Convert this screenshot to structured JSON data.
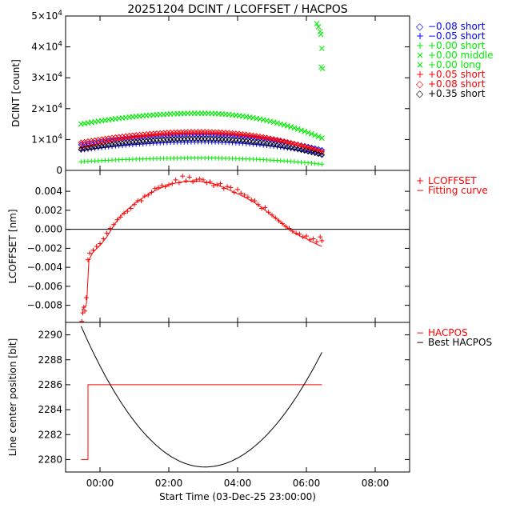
{
  "title": "20251204 DCINT / LCOFFSET / HACPOS",
  "xlabel": "Start Time (03-Dec-25 23:00:00)",
  "x_ticks": [
    "00:00",
    "02:00",
    "04:00",
    "06:00",
    "08:00"
  ],
  "x_tick_values": [
    1,
    3,
    5,
    7,
    9
  ],
  "x_range_hours": [
    0,
    10
  ],
  "colors": {
    "red": "#ff0000",
    "blue": "#0000ff",
    "green": "#00ee00",
    "black": "#000000"
  },
  "chart_data": [
    {
      "type": "scatter",
      "ylabel": "DCINT [count]",
      "ylim": [
        0,
        50000
      ],
      "y_ticks": [
        {
          "value": 0,
          "label": "0"
        },
        {
          "value": 10000,
          "base": "1×10",
          "exp": "4"
        },
        {
          "value": 20000,
          "base": "2×10",
          "exp": "4"
        },
        {
          "value": 30000,
          "base": "3×10",
          "exp": "4"
        },
        {
          "value": 40000,
          "base": "4×10",
          "exp": "4"
        },
        {
          "value": 50000,
          "base": "5×10",
          "exp": "4"
        }
      ],
      "x_start_hours": 0.45,
      "x_end_hours": 7.45,
      "series": [
        {
          "name": "−0.08 short",
          "marker": "◇",
          "color": "#0000ff",
          "start": 8300,
          "peak": 11500,
          "end": 6600
        },
        {
          "name": "−0.05 short",
          "marker": "+",
          "color": "#0000ff",
          "start": 6500,
          "peak": 9200,
          "end": 5200
        },
        {
          "name": "+0.00 short",
          "marker": "+",
          "color": "#00ee00",
          "start": 2800,
          "peak": 4000,
          "end": 2000
        },
        {
          "name": "+0.00 middle",
          "marker": "×",
          "color": "#00ee00",
          "start": 15000,
          "peak": 18500,
          "end": 10500
        },
        {
          "name": "+0.00 long",
          "marker": "×",
          "color": "#00ee00",
          "start": 15000,
          "peak": 18500,
          "end": 10500,
          "burst": [
            [
              7.3,
              47500
            ],
            [
              7.35,
              46500
            ],
            [
              7.4,
              45000
            ],
            [
              7.42,
              44000
            ],
            [
              7.45,
              39500
            ],
            [
              7.43,
              33500
            ],
            [
              7.47,
              33000
            ]
          ]
        },
        {
          "name": "+0.05 short",
          "marker": "+",
          "color": "#ff0000",
          "start": 7400,
          "peak": 12000,
          "end": 6100
        },
        {
          "name": "+0.08 short",
          "marker": "◇",
          "color": "#ff0000",
          "start": 9000,
          "peak": 12500,
          "end": 6000
        },
        {
          "name": "+0.35 short",
          "marker": "◇",
          "color": "#000000",
          "start": 6800,
          "peak": 10200,
          "end": 5000
        }
      ]
    },
    {
      "type": "scatter",
      "ylabel": "LCOFFSET [nm]",
      "ylim": [
        -0.0098,
        0.0062
      ],
      "y_ticks": [
        {
          "value": -0.008,
          "label": "−0.008"
        },
        {
          "value": -0.006,
          "label": "−0.006"
        },
        {
          "value": -0.004,
          "label": "−0.004"
        },
        {
          "value": -0.002,
          "label": "−0.002"
        },
        {
          "value": 0.0,
          "label": "0.000"
        },
        {
          "value": 0.002,
          "label": "0.002"
        },
        {
          "value": 0.004,
          "label": "0.004"
        }
      ],
      "reference_line": 0.0,
      "series": [
        {
          "name": "LCOFFSET",
          "marker": "+",
          "color": "#ff0000",
          "points": [
            [
              0.47,
              -0.0097
            ],
            [
              0.5,
              -0.0088
            ],
            [
              0.53,
              -0.0082
            ],
            [
              0.56,
              -0.0086
            ],
            [
              0.6,
              -0.0072
            ],
            [
              0.65,
              -0.0032
            ],
            [
              0.7,
              -0.0025
            ],
            [
              0.8,
              -0.0022
            ],
            [
              0.9,
              -0.0018
            ],
            [
              1.0,
              -0.0015
            ],
            [
              1.1,
              -0.001
            ],
            [
              1.2,
              -0.0004
            ],
            [
              1.3,
              0.0001
            ],
            [
              1.4,
              0.0005
            ],
            [
              1.5,
              0.001
            ],
            [
              1.6,
              0.0013
            ],
            [
              1.7,
              0.0017
            ],
            [
              1.8,
              0.0019
            ],
            [
              1.9,
              0.0022
            ],
            [
              2.0,
              0.0026
            ],
            [
              2.1,
              0.003
            ],
            [
              2.2,
              0.003
            ],
            [
              2.3,
              0.0035
            ],
            [
              2.4,
              0.0036
            ],
            [
              2.5,
              0.0039
            ],
            [
              2.6,
              0.0043
            ],
            [
              2.7,
              0.0044
            ],
            [
              2.8,
              0.0046
            ],
            [
              2.9,
              0.0045
            ],
            [
              3.0,
              0.0047
            ],
            [
              3.1,
              0.0048
            ],
            [
              3.2,
              0.0052
            ],
            [
              3.3,
              0.0049
            ],
            [
              3.4,
              0.0056
            ],
            [
              3.5,
              0.0051
            ],
            [
              3.6,
              0.0055
            ],
            [
              3.7,
              0.005
            ],
            [
              3.8,
              0.0052
            ],
            [
              3.9,
              0.0053
            ],
            [
              4.0,
              0.0052
            ],
            [
              4.1,
              0.0049
            ],
            [
              4.2,
              0.005
            ],
            [
              4.3,
              0.0046
            ],
            [
              4.4,
              0.0047
            ],
            [
              4.5,
              0.0048
            ],
            [
              4.6,
              0.0043
            ],
            [
              4.7,
              0.0045
            ],
            [
              4.8,
              0.0044
            ],
            [
              4.9,
              0.0039
            ],
            [
              5.0,
              0.0042
            ],
            [
              5.1,
              0.0038
            ],
            [
              5.2,
              0.0036
            ],
            [
              5.3,
              0.0034
            ],
            [
              5.4,
              0.0031
            ],
            [
              5.5,
              0.003
            ],
            [
              5.6,
              0.0026
            ],
            [
              5.7,
              0.0022
            ],
            [
              5.8,
              0.0023
            ],
            [
              5.9,
              0.0018
            ],
            [
              6.0,
              0.0015
            ],
            [
              6.1,
              0.0012
            ],
            [
              6.2,
              0.0009
            ],
            [
              6.3,
              0.0006
            ],
            [
              6.4,
              0.0003
            ],
            [
              6.5,
              0.0001
            ],
            [
              6.6,
              -0.0002
            ],
            [
              6.7,
              -0.0004
            ],
            [
              6.8,
              -0.0005
            ],
            [
              6.9,
              -0.0008
            ],
            [
              7.0,
              -0.0007
            ],
            [
              7.1,
              -0.0011
            ],
            [
              7.2,
              -0.001
            ],
            [
              7.3,
              -0.0013
            ],
            [
              7.4,
              -0.0008
            ],
            [
              7.45,
              -0.0012
            ]
          ]
        },
        {
          "name": "Fitting curve",
          "line": true,
          "color": "#ff0000",
          "points": [
            [
              0.47,
              -0.0085
            ],
            [
              0.6,
              -0.008
            ],
            [
              0.62,
              -0.0072
            ],
            [
              0.68,
              -0.0032
            ],
            [
              0.8,
              -0.0024
            ],
            [
              1.0,
              -0.0017
            ],
            [
              1.2,
              -0.0008
            ],
            [
              1.4,
              0.0004
            ],
            [
              1.6,
              0.0014
            ],
            [
              1.8,
              0.0021
            ],
            [
              2.0,
              0.0027
            ],
            [
              2.2,
              0.0032
            ],
            [
              2.5,
              0.0039
            ],
            [
              2.8,
              0.0044
            ],
            [
              3.1,
              0.0048
            ],
            [
              3.4,
              0.005
            ],
            [
              3.7,
              0.0051
            ],
            [
              4.0,
              0.005
            ],
            [
              4.3,
              0.0048
            ],
            [
              4.6,
              0.0044
            ],
            [
              4.9,
              0.0039
            ],
            [
              5.2,
              0.0034
            ],
            [
              5.5,
              0.0028
            ],
            [
              5.8,
              0.002
            ],
            [
              6.1,
              0.0012
            ],
            [
              6.4,
              0.0003
            ],
            [
              6.7,
              -0.0005
            ],
            [
              7.0,
              -0.001
            ],
            [
              7.2,
              -0.0014
            ],
            [
              7.45,
              -0.0018
            ]
          ]
        }
      ]
    },
    {
      "type": "line",
      "ylabel": "Line center position [bit]",
      "ylim": [
        2279,
        2291
      ],
      "y_ticks": [
        {
          "value": 2280,
          "label": "2280"
        },
        {
          "value": 2282,
          "label": "2282"
        },
        {
          "value": 2284,
          "label": "2284"
        },
        {
          "value": 2286,
          "label": "2286"
        },
        {
          "value": 2288,
          "label": "2288"
        },
        {
          "value": 2290,
          "label": "2290"
        }
      ],
      "series": [
        {
          "name": "HACPOS",
          "color": "#ff0000",
          "step": true,
          "points": [
            [
              0.45,
              2280
            ],
            [
              0.65,
              2280
            ],
            [
              0.65,
              2286
            ],
            [
              7.45,
              2286
            ]
          ]
        },
        {
          "name": "Best HACPOS",
          "color": "#000000",
          "parabola": {
            "x_start": 0.45,
            "x_end": 7.45,
            "vertex_x": 4.05,
            "vertex_y": 2279.4,
            "start_y": 2290.7,
            "end_y": 2288.6
          }
        }
      ]
    }
  ]
}
